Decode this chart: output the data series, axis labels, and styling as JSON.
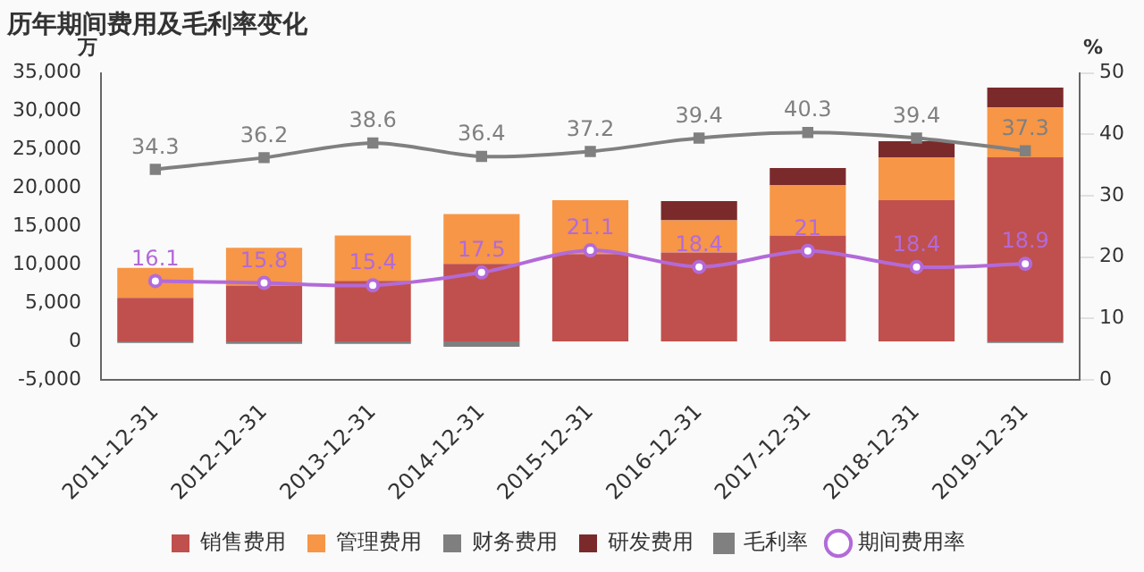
{
  "chart_data": {
    "type": "bar",
    "title": "历年期间费用及毛利率变化",
    "ylabel": "万",
    "y2label": "%",
    "categories": [
      "2011-12-31",
      "2012-12-31",
      "2013-12-31",
      "2014-12-31",
      "2015-12-31",
      "2016-12-31",
      "2017-12-31",
      "2018-12-31",
      "2019-12-31"
    ],
    "stacked": true,
    "series": [
      {
        "name": "销售费用",
        "color": "#c0504d",
        "values": [
          5700,
          7300,
          7900,
          10100,
          11400,
          11600,
          13800,
          18400,
          24000
        ]
      },
      {
        "name": "管理费用",
        "color": "#f79646",
        "values": [
          3900,
          4900,
          5900,
          6500,
          7000,
          4200,
          6600,
          5600,
          6500
        ]
      },
      {
        "name": "财务费用",
        "color": "#7f7f7f",
        "values": [
          -200,
          -300,
          -300,
          -700,
          null,
          null,
          null,
          null,
          -200
        ]
      },
      {
        "name": "研发费用",
        "color": "#7b2a2c",
        "values": [
          null,
          null,
          null,
          null,
          null,
          2500,
          2200,
          2100,
          2600
        ]
      },
      {
        "name": "毛利率",
        "type": "line",
        "axis": "y2",
        "color": "#808080",
        "marker": "square",
        "values": [
          34.3,
          36.2,
          38.6,
          36.4,
          37.2,
          39.4,
          40.3,
          39.4,
          37.3
        ],
        "value_labels": [
          "34.3",
          "36.2",
          "38.6",
          "36.4",
          "37.2",
          "39.4",
          "40.3",
          "39.4",
          "37.3"
        ]
      },
      {
        "name": "期间费用率",
        "type": "line",
        "axis": "y2",
        "color": "#b36ad8",
        "marker": "circle",
        "values": [
          16.1,
          15.8,
          15.4,
          17.5,
          21.1,
          18.4,
          21,
          18.4,
          18.9
        ],
        "value_labels": [
          "16.1",
          "15.8",
          "15.4",
          "17.5",
          "21.1",
          "18.4",
          "21",
          "18.4",
          "18.9"
        ]
      }
    ],
    "ylim": [
      -5000,
      35000
    ],
    "yticks": [
      {
        "value": -5000,
        "label": "-5,000"
      },
      0,
      {
        "value": 5000,
        "label": "5,000"
      },
      {
        "value": 10000,
        "label": "10,000"
      },
      {
        "value": 15000,
        "label": "15,000"
      },
      {
        "value": 20000,
        "label": "20,000"
      },
      {
        "value": 25000,
        "label": "25,000"
      },
      {
        "value": 30000,
        "label": "30,000"
      },
      {
        "value": 35000,
        "label": "35,000"
      }
    ],
    "y2lim": [
      0,
      50
    ],
    "y2ticks": [
      0,
      10,
      20,
      30,
      40,
      50
    ],
    "grid": false,
    "legend": "bottom"
  }
}
